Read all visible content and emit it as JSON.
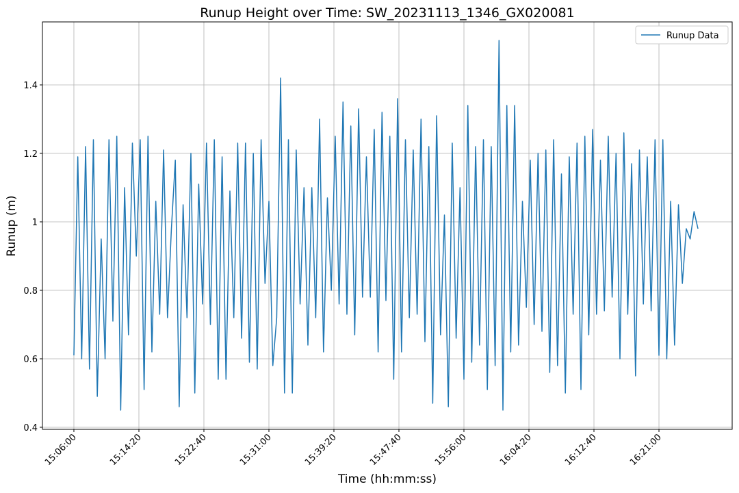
{
  "chart_data": {
    "type": "line",
    "title": "Runup Height over Time: SW_20231113_1346_GX020081",
    "xlabel": "Time (hh:mm:ss)",
    "ylabel": "Runup (m)",
    "grid": true,
    "legend": "upper right",
    "xlim": [
      "15:01:58",
      "16:30:23"
    ],
    "xticks": [
      "15:06:00",
      "15:14:20",
      "15:22:40",
      "15:31:00",
      "15:39:20",
      "15:47:40",
      "15:56:00",
      "16:04:20",
      "16:12:40",
      "16:21:00"
    ],
    "ylim": [
      0.394,
      1.584
    ],
    "yticks": [
      0.4,
      0.6,
      0.8,
      1.0,
      1.2,
      1.4
    ],
    "x": [
      "15:06:00",
      "15:06:30",
      "15:07:00",
      "15:07:30",
      "15:08:00",
      "15:08:30",
      "15:09:00",
      "15:09:30",
      "15:10:00",
      "15:10:30",
      "15:11:00",
      "15:11:30",
      "15:12:00",
      "15:12:30",
      "15:13:00",
      "15:13:30",
      "15:14:00",
      "15:14:30",
      "15:15:00",
      "15:15:30",
      "15:16:00",
      "15:16:30",
      "15:17:00",
      "15:17:30",
      "15:18:00",
      "15:18:30",
      "15:19:00",
      "15:19:30",
      "15:20:00",
      "15:20:30",
      "15:21:00",
      "15:21:30",
      "15:22:00",
      "15:22:30",
      "15:23:00",
      "15:23:30",
      "15:24:00",
      "15:24:30",
      "15:25:00",
      "15:25:30",
      "15:26:00",
      "15:26:30",
      "15:27:00",
      "15:27:30",
      "15:28:00",
      "15:28:30",
      "15:29:00",
      "15:29:30",
      "15:30:00",
      "15:30:30",
      "15:31:00",
      "15:31:30",
      "15:32:00",
      "15:32:30",
      "15:33:00",
      "15:33:30",
      "15:34:00",
      "15:34:30",
      "15:35:00",
      "15:35:30",
      "15:36:00",
      "15:36:30",
      "15:37:00",
      "15:37:30",
      "15:38:00",
      "15:38:30",
      "15:39:00",
      "15:39:30",
      "15:40:00",
      "15:40:30",
      "15:41:00",
      "15:41:30",
      "15:42:00",
      "15:42:30",
      "15:43:00",
      "15:43:30",
      "15:44:00",
      "15:44:30",
      "15:45:00",
      "15:45:30",
      "15:46:00",
      "15:46:30",
      "15:47:00",
      "15:47:30",
      "15:48:00",
      "15:48:30",
      "15:49:00",
      "15:49:30",
      "15:50:00",
      "15:50:30",
      "15:51:00",
      "15:51:30",
      "15:52:00",
      "15:52:30",
      "15:53:00",
      "15:53:30",
      "15:54:00",
      "15:54:30",
      "15:55:00",
      "15:55:30",
      "15:56:00",
      "15:56:30",
      "15:57:00",
      "15:57:30",
      "15:58:00",
      "15:58:30",
      "15:59:00",
      "15:59:30",
      "16:00:00",
      "16:00:30",
      "16:01:00",
      "16:01:30",
      "16:02:00",
      "16:02:30",
      "16:03:00",
      "16:03:30",
      "16:04:00",
      "16:04:30",
      "16:05:00",
      "16:05:30",
      "16:06:00",
      "16:06:30",
      "16:07:00",
      "16:07:30",
      "16:08:00",
      "16:08:30",
      "16:09:00",
      "16:09:30",
      "16:10:00",
      "16:10:30",
      "16:11:00",
      "16:11:30",
      "16:12:00",
      "16:12:30",
      "16:13:00",
      "16:13:30",
      "16:14:00",
      "16:14:30",
      "16:15:00",
      "16:15:30",
      "16:16:00",
      "16:16:30",
      "16:17:00",
      "16:17:30",
      "16:18:00",
      "16:18:30",
      "16:19:00",
      "16:19:30",
      "16:20:00",
      "16:20:30",
      "16:21:00",
      "16:21:30",
      "16:22:00",
      "16:22:30",
      "16:23:00",
      "16:23:30",
      "16:24:00",
      "16:24:30",
      "16:25:00",
      "16:25:30",
      "16:26:00"
    ],
    "series": [
      {
        "name": "Runup Data",
        "color": "#1f77b4",
        "values": [
          0.61,
          1.19,
          0.6,
          1.22,
          0.57,
          1.24,
          0.49,
          0.95,
          0.6,
          1.24,
          0.71,
          1.25,
          0.45,
          1.1,
          0.67,
          1.23,
          0.9,
          1.24,
          0.51,
          1.25,
          0.62,
          1.06,
          0.73,
          1.21,
          0.72,
          0.98,
          1.18,
          0.46,
          1.05,
          0.72,
          1.2,
          0.5,
          1.11,
          0.76,
          1.23,
          0.7,
          1.24,
          0.54,
          1.19,
          0.54,
          1.09,
          0.72,
          1.23,
          0.66,
          1.23,
          0.59,
          1.2,
          0.57,
          1.24,
          0.82,
          1.06,
          0.58,
          0.72,
          1.42,
          0.5,
          1.24,
          0.5,
          1.21,
          0.76,
          1.1,
          0.64,
          1.1,
          0.72,
          1.3,
          0.62,
          1.07,
          0.8,
          1.25,
          0.76,
          1.35,
          0.73,
          1.28,
          0.67,
          1.33,
          0.78,
          1.19,
          0.78,
          1.27,
          0.62,
          1.32,
          0.77,
          1.25,
          0.54,
          1.36,
          0.62,
          1.24,
          0.72,
          1.21,
          0.73,
          1.3,
          0.65,
          1.22,
          0.47,
          1.31,
          0.67,
          1.02,
          0.46,
          1.23,
          0.66,
          1.1,
          0.54,
          1.34,
          0.59,
          1.22,
          0.64,
          1.24,
          0.51,
          1.22,
          0.58,
          1.53,
          0.45,
          1.34,
          0.62,
          1.34,
          0.64,
          1.06,
          0.75,
          1.18,
          0.7,
          1.2,
          0.68,
          1.21,
          0.56,
          1.24,
          0.58,
          1.14,
          0.5,
          1.19,
          0.73,
          1.23,
          0.51,
          1.25,
          0.67,
          1.27,
          0.73,
          1.18,
          0.74,
          1.25,
          0.78,
          1.2,
          0.6,
          1.26,
          0.73,
          1.17,
          0.55,
          1.21,
          0.76,
          1.19,
          0.74,
          1.24,
          0.61,
          1.24,
          0.6,
          1.06,
          0.64,
          1.05,
          0.82,
          0.98,
          0.95,
          1.03,
          0.98
        ]
      }
    ]
  }
}
